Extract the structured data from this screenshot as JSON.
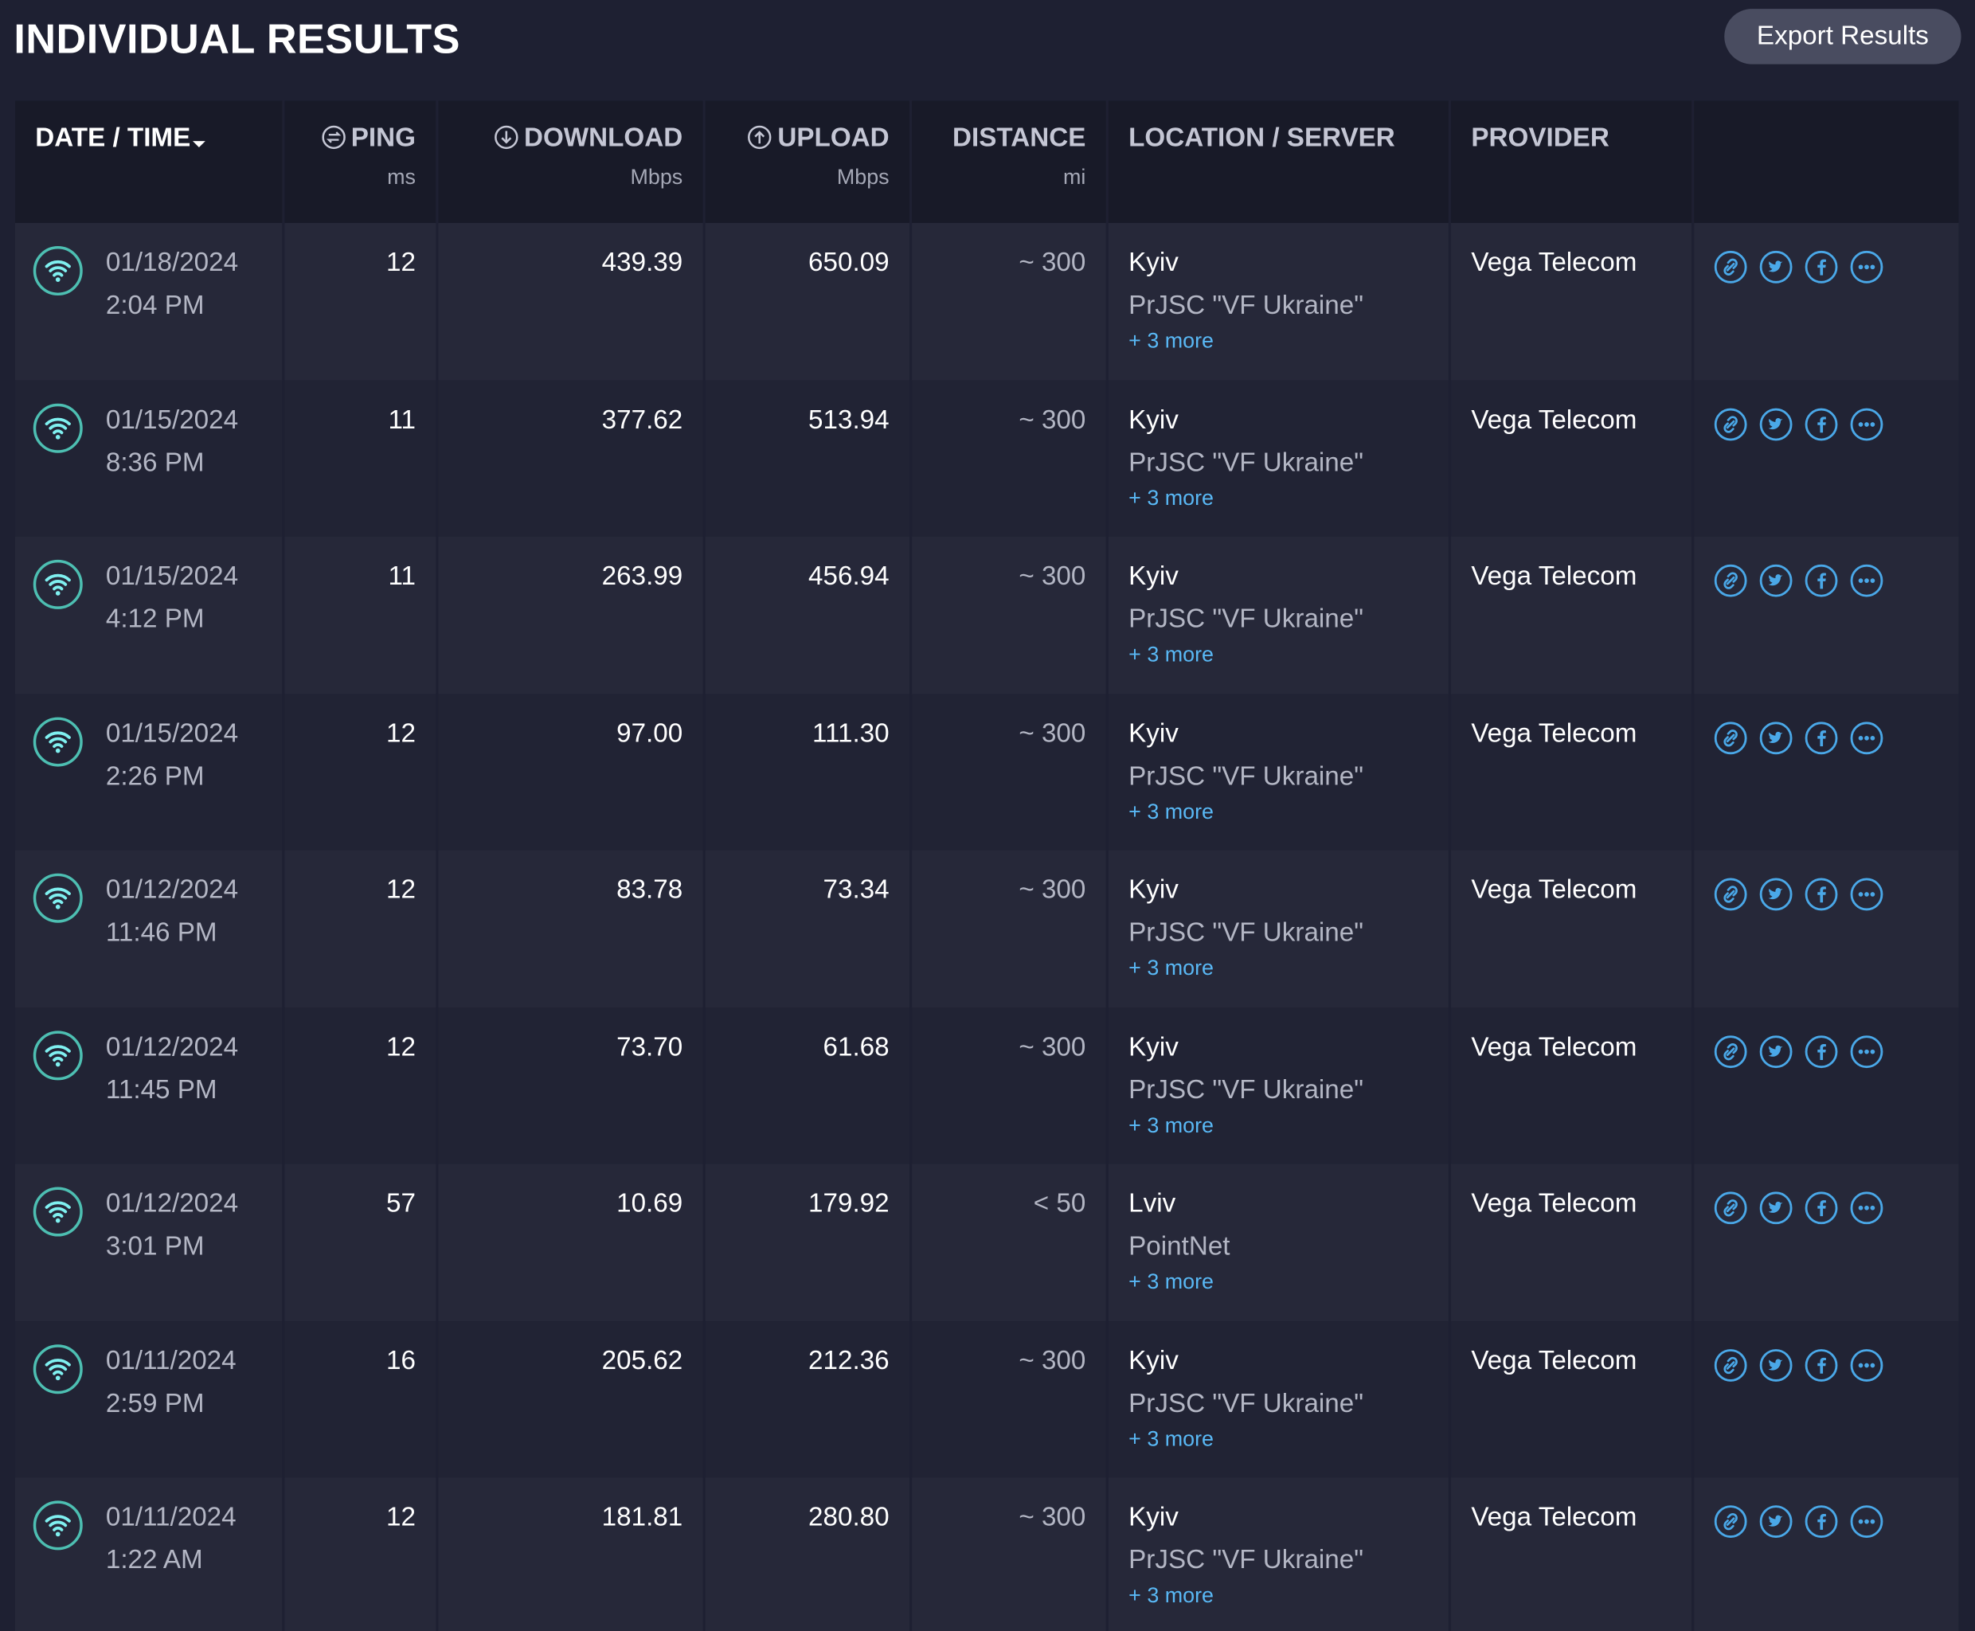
{
  "header": {
    "title": "INDIVIDUAL RESULTS",
    "export_button": "Export Results"
  },
  "table": {
    "columns": [
      {
        "label": "DATE / TIME"
      },
      {
        "label": "PING",
        "unit": "ms"
      },
      {
        "label": "DOWNLOAD",
        "unit": "Mbps"
      },
      {
        "label": "UPLOAD",
        "unit": "Mbps"
      },
      {
        "label": "DISTANCE",
        "unit": "mi"
      },
      {
        "label": "LOCATION / SERVER"
      },
      {
        "label": "PROVIDER"
      }
    ],
    "rows": [
      {
        "date": "01/18/2024",
        "time": "2:04 PM",
        "ping": "12",
        "download": "439.39",
        "upload": "650.09",
        "distance": "~ 300",
        "location": "Kyiv",
        "server": "PrJSC \"VF Ukraine\"",
        "more": "+ 3 more",
        "provider": "Vega Telecom"
      },
      {
        "date": "01/15/2024",
        "time": "8:36 PM",
        "ping": "11",
        "download": "377.62",
        "upload": "513.94",
        "distance": "~ 300",
        "location": "Kyiv",
        "server": "PrJSC \"VF Ukraine\"",
        "more": "+ 3 more",
        "provider": "Vega Telecom"
      },
      {
        "date": "01/15/2024",
        "time": "4:12 PM",
        "ping": "11",
        "download": "263.99",
        "upload": "456.94",
        "distance": "~ 300",
        "location": "Kyiv",
        "server": "PrJSC \"VF Ukraine\"",
        "more": "+ 3 more",
        "provider": "Vega Telecom"
      },
      {
        "date": "01/15/2024",
        "time": "2:26 PM",
        "ping": "12",
        "download": "97.00",
        "upload": "111.30",
        "distance": "~ 300",
        "location": "Kyiv",
        "server": "PrJSC \"VF Ukraine\"",
        "more": "+ 3 more",
        "provider": "Vega Telecom"
      },
      {
        "date": "01/12/2024",
        "time": "11:46 PM",
        "ping": "12",
        "download": "83.78",
        "upload": "73.34",
        "distance": "~ 300",
        "location": "Kyiv",
        "server": "PrJSC \"VF Ukraine\"",
        "more": "+ 3 more",
        "provider": "Vega Telecom"
      },
      {
        "date": "01/12/2024",
        "time": "11:45 PM",
        "ping": "12",
        "download": "73.70",
        "upload": "61.68",
        "distance": "~ 300",
        "location": "Kyiv",
        "server": "PrJSC \"VF Ukraine\"",
        "more": "+ 3 more",
        "provider": "Vega Telecom"
      },
      {
        "date": "01/12/2024",
        "time": "3:01 PM",
        "ping": "57",
        "download": "10.69",
        "upload": "179.92",
        "distance": "< 50",
        "location": "Lviv",
        "server": "PointNet",
        "more": "+ 3 more",
        "provider": "Vega Telecom"
      },
      {
        "date": "01/11/2024",
        "time": "2:59 PM",
        "ping": "16",
        "download": "205.62",
        "upload": "212.36",
        "distance": "~ 300",
        "location": "Kyiv",
        "server": "PrJSC \"VF Ukraine\"",
        "more": "+ 3 more",
        "provider": "Vega Telecom"
      },
      {
        "date": "01/11/2024",
        "time": "1:22 AM",
        "ping": "12",
        "download": "181.81",
        "upload": "280.80",
        "distance": "~ 300",
        "location": "Kyiv",
        "server": "PrJSC \"VF Ukraine\"",
        "more": "+ 3 more",
        "provider": "Vega Telecom"
      }
    ]
  }
}
